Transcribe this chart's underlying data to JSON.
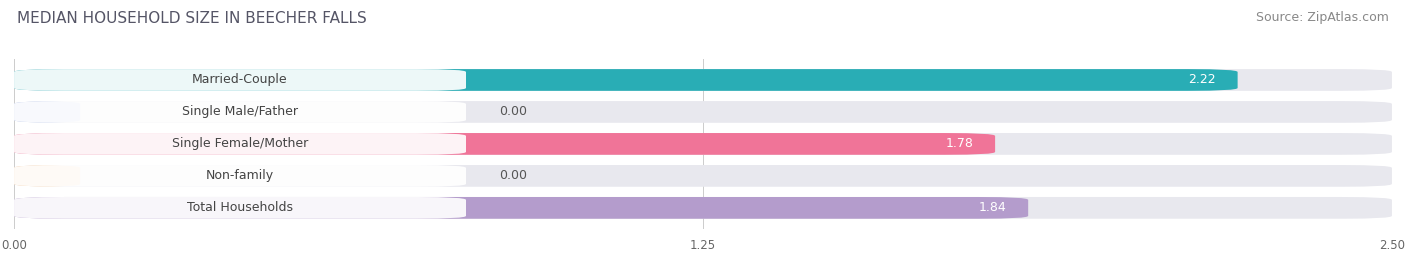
{
  "title": "MEDIAN HOUSEHOLD SIZE IN BEECHER FALLS",
  "source": "Source: ZipAtlas.com",
  "categories": [
    "Married-Couple",
    "Single Male/Father",
    "Single Female/Mother",
    "Non-family",
    "Total Households"
  ],
  "values": [
    2.22,
    0.0,
    1.78,
    0.0,
    1.84
  ],
  "bar_colors": [
    "#29adb5",
    "#aabce8",
    "#f07498",
    "#f8c998",
    "#b49ccc"
  ],
  "bar_background": "#e8e8ee",
  "label_box_color": "#ffffff",
  "xlim": [
    0,
    2.5
  ],
  "xticks": [
    0.0,
    1.25,
    2.5
  ],
  "xtick_labels": [
    "0.00",
    "1.25",
    "2.50"
  ],
  "title_fontsize": 11,
  "source_fontsize": 9,
  "label_fontsize": 9,
  "value_fontsize": 9
}
